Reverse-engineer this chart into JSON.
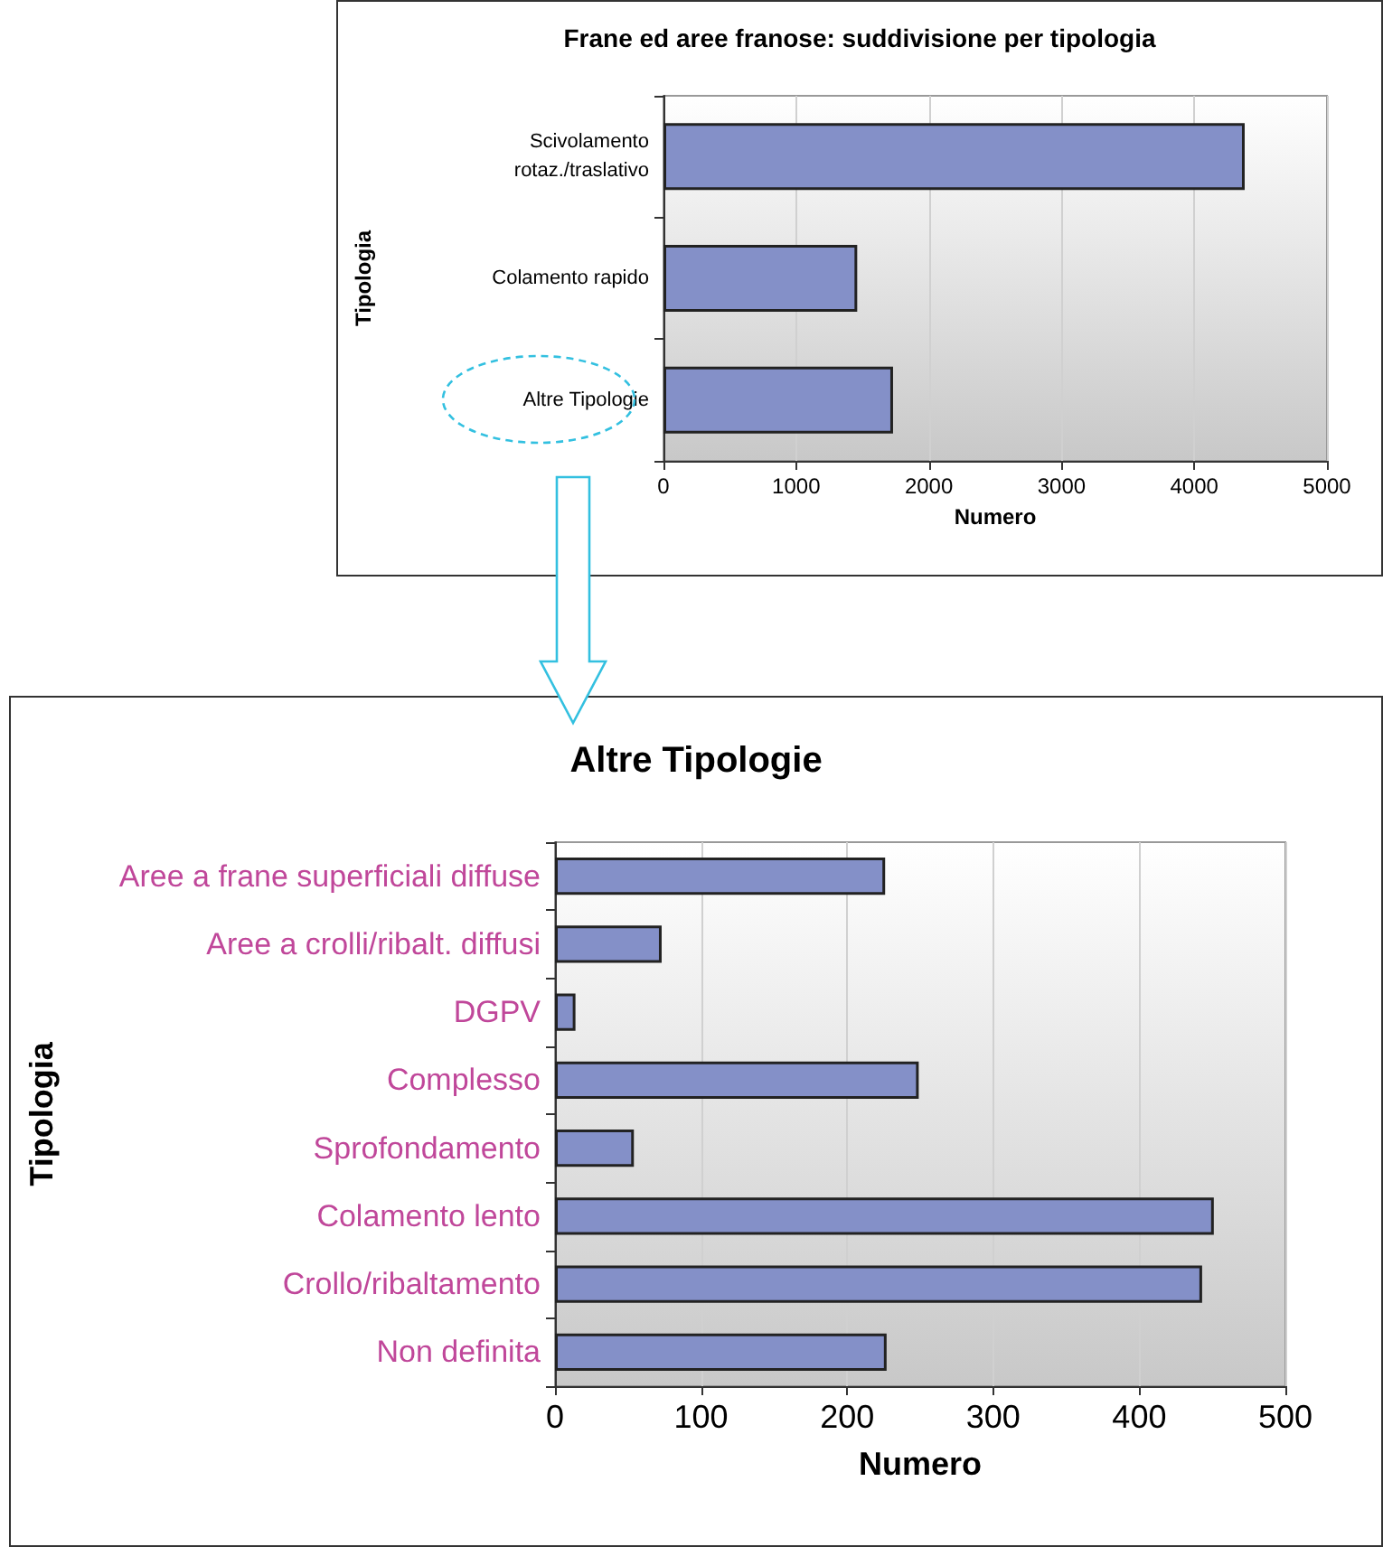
{
  "chart_data": [
    {
      "type": "bar",
      "orientation": "horizontal",
      "title": "Frane ed aree franose: suddivisione per tipologia",
      "xlabel": "Numero",
      "ylabel": "Tipologia",
      "categories": [
        "Scivolamento\nrotaz./traslativo",
        "Colamento rapido",
        "Altre Tipologie"
      ],
      "values": [
        4380,
        1460,
        1730
      ],
      "color": "#8490c8",
      "xlim": [
        0,
        5000
      ],
      "xticks": [
        0,
        1000,
        2000,
        3000,
        4000,
        5000
      ],
      "grid": "x"
    },
    {
      "type": "bar",
      "orientation": "horizontal",
      "title": "Altre Tipologie",
      "xlabel": "Numero",
      "ylabel": "Tipologia",
      "categories": [
        "Aree a frane superficiali diffuse",
        "Aree a crolli/ribalt. diffusi",
        "DGPV",
        "Complesso",
        "Sprofondamento",
        "Colamento lento",
        "Crollo/ribaltamento",
        "Non definita"
      ],
      "values": [
        226,
        73,
        14,
        249,
        54,
        451,
        443,
        227
      ],
      "color": "#8490c8",
      "xlim": [
        0,
        500
      ],
      "xticks": [
        0,
        100,
        200,
        300,
        400,
        500
      ],
      "grid": "x"
    }
  ]
}
